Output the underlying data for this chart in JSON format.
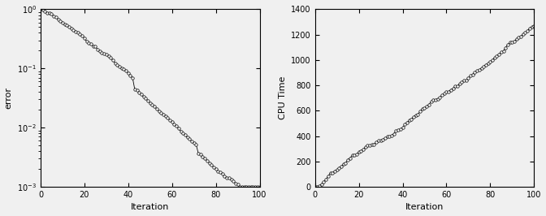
{
  "left": {
    "xlabel": "Iteration",
    "ylabel": "error",
    "xlim": [
      0,
      100
    ],
    "ylim_log": [
      -3,
      0
    ],
    "yticks": [
      0.001,
      0.01,
      0.1,
      1.0
    ],
    "xticks": [
      0,
      20,
      40,
      60,
      80,
      100
    ]
  },
  "right": {
    "xlabel": "Iteration",
    "ylabel": "CPU Time",
    "xlim": [
      0,
      100
    ],
    "ylim": [
      0,
      1400
    ],
    "yticks": [
      0,
      200,
      400,
      600,
      800,
      1000,
      1200,
      1400
    ],
    "xticks": [
      0,
      20,
      40,
      60,
      80,
      100
    ]
  },
  "line_color": "#000000",
  "marker": "o",
  "markersize": 2.5,
  "linewidth": 0.6,
  "markeredgewidth": 0.5,
  "bg_color": "#f0f0f0",
  "face_color": "#f0f0f0"
}
